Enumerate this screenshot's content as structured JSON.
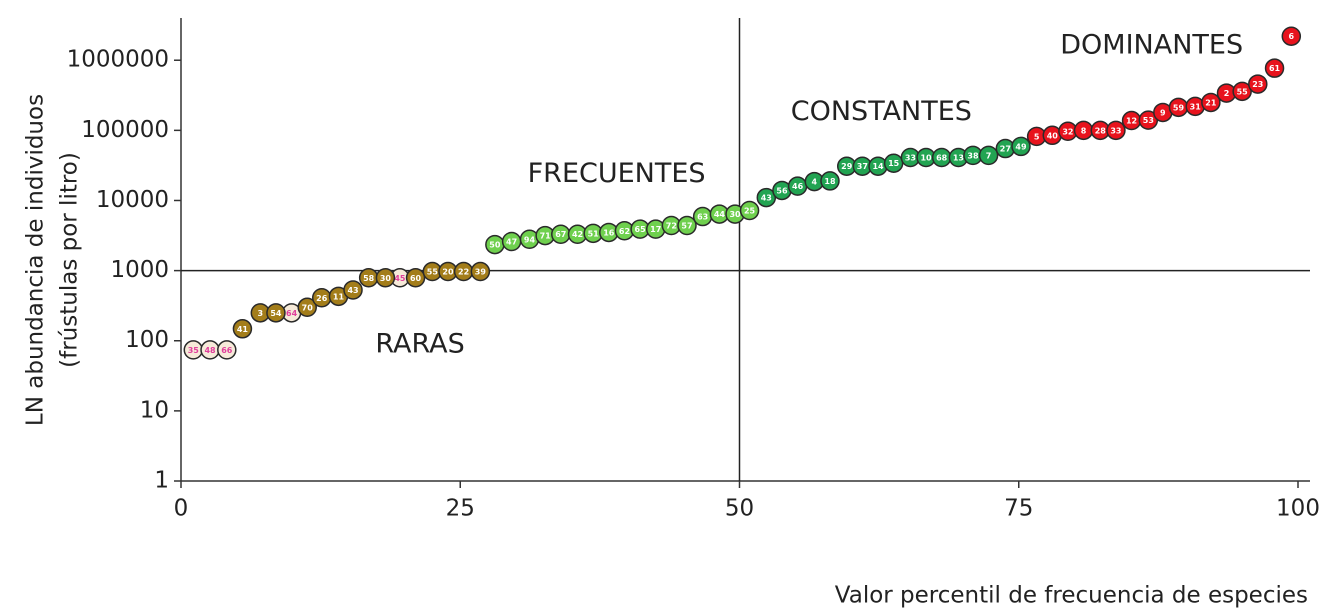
{
  "chart_data": {
    "type": "scatter",
    "ylog": true,
    "xlabel": "Valor percentil de frecuencia de especies",
    "ylabel": [
      "LN abundancia de individuos",
      "(frústulas por litro)"
    ],
    "xlim": [
      0,
      100
    ],
    "ylim": [
      1,
      4000000
    ],
    "xticks": [
      0,
      25,
      50,
      75,
      100
    ],
    "yticks": [
      1,
      10,
      100,
      1000,
      10000,
      100000,
      1000000
    ],
    "reference_lines": {
      "x": 50,
      "y": 1000
    },
    "annotations": [
      {
        "text": "RARAS",
        "x": 21.4,
        "y": 87
      },
      {
        "text": "FRECUENTES",
        "x": 39,
        "y": 23500
      },
      {
        "text": "CONSTANTES",
        "x": 62.7,
        "y": 180000
      },
      {
        "text": "DOMINANTES",
        "x": 86.9,
        "y": 1600000
      }
    ],
    "series": [
      {
        "color": "#f6ead9",
        "label_color": "#e0409c",
        "x": [
          1.1,
          2.6,
          4.1,
          9.9,
          19.6
        ],
        "values": [
          74,
          74,
          74,
          250,
          790
        ],
        "labels": [
          "35",
          "48",
          "66",
          "64",
          "45"
        ]
      },
      {
        "color": "#a37d1a",
        "label_color": "#ffffff",
        "x": [
          5.5,
          7.1,
          8.5,
          11.3,
          12.6,
          14.1,
          15.4,
          16.8,
          18.3,
          21.0,
          22.5,
          23.9,
          25.3,
          26.8
        ],
        "values": [
          148,
          250,
          250,
          300,
          410,
          430,
          530,
          790,
          790,
          790,
          970,
          970,
          970,
          970
        ],
        "labels": [
          "41",
          "3",
          "54",
          "70",
          "26",
          "11",
          "43",
          "58",
          "30",
          "60",
          "55",
          "20",
          "22",
          "39"
        ]
      },
      {
        "color": "#6fd04e",
        "label_color": "#ffffff",
        "x": [
          28.1,
          29.6,
          31.2,
          32.6,
          34.0,
          35.5,
          36.9,
          38.3,
          39.7,
          41.1,
          42.5,
          43.9,
          45.3,
          46.7,
          48.2,
          49.6,
          50.9
        ],
        "values": [
          2350,
          2600,
          2800,
          3160,
          3300,
          3300,
          3400,
          3500,
          3700,
          3900,
          3900,
          4400,
          4400,
          5900,
          6400,
          6400,
          7200
        ],
        "labels": [
          "50",
          "47",
          "94",
          "71",
          "67",
          "42",
          "51",
          "16",
          "62",
          "65",
          "17",
          "72",
          "57",
          "63",
          "44",
          "30",
          "25"
        ]
      },
      {
        "color": "#22a452",
        "label_color": "#ffffff",
        "x": [
          52.4,
          53.8,
          55.2,
          56.7,
          58.1,
          59.6,
          61.0,
          62.4,
          63.8,
          65.3,
          66.7,
          68.1,
          69.6,
          70.9,
          72.3,
          73.8,
          75.2
        ],
        "values": [
          11000,
          13900,
          16000,
          18600,
          19000,
          30800,
          30800,
          30800,
          34000,
          41000,
          41000,
          41000,
          41000,
          44000,
          44000,
          55000,
          59000
        ],
        "labels": [
          "43",
          "56",
          "46",
          "4",
          "18",
          "29",
          "37",
          "14",
          "15",
          "33",
          "10",
          "68",
          "13",
          "38",
          "7",
          "27",
          "49"
        ]
      },
      {
        "color": "#e8131d",
        "label_color": "#ffffff",
        "x": [
          76.6,
          78.0,
          79.4,
          80.8,
          82.3,
          83.7,
          85.1,
          86.6,
          87.9,
          89.3,
          90.8,
          92.2,
          93.6,
          95.0,
          96.4,
          97.9,
          99.4
        ],
        "values": [
          82000,
          85000,
          97000,
          100000,
          100000,
          100000,
          138000,
          140000,
          180000,
          213000,
          220000,
          250000,
          340000,
          360000,
          457000,
          770000,
          2200000
        ],
        "labels": [
          "5",
          "40",
          "32",
          "8",
          "28",
          "33",
          "12",
          "53",
          "9",
          "59",
          "31",
          "21",
          "2",
          "55",
          "23",
          "61",
          "6"
        ]
      }
    ]
  }
}
